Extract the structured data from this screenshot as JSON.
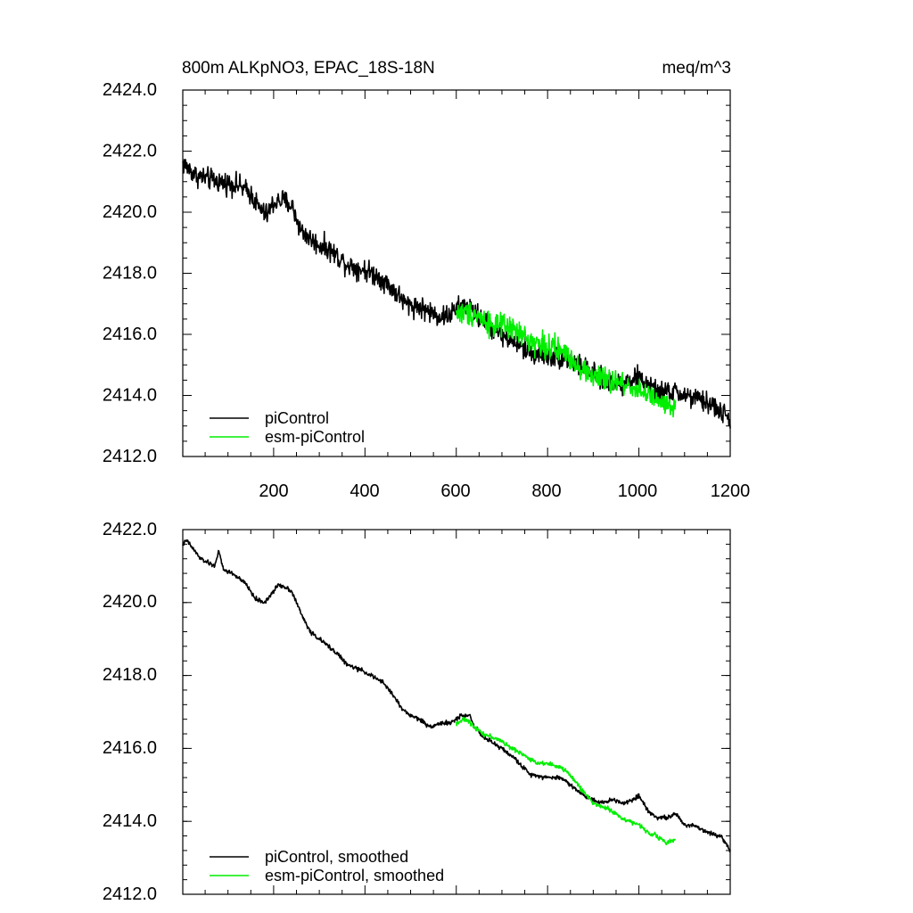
{
  "chart_data": [
    {
      "type": "line",
      "title_left": "800m ALKpNO3, EPAC_18S-18N",
      "title_right": "meq/m^3",
      "xlim": [
        1,
        1200
      ],
      "ylim": [
        2412.0,
        2424.0
      ],
      "x_ticks": [
        200,
        400,
        600,
        800,
        1000,
        1200
      ],
      "y_ticks": [
        2412.0,
        2414.0,
        2416.0,
        2418.0,
        2420.0,
        2422.0,
        2424.0
      ],
      "y_tick_labels": [
        "2412.0",
        "2414.0",
        "2416.0",
        "2418.0",
        "2420.0",
        "2422.0",
        "2424.0"
      ],
      "x_tick_labels": [
        "200",
        "400",
        "600",
        "800",
        "1000",
        "1200"
      ],
      "legend": "bottom-left",
      "series": [
        {
          "name": "piControl",
          "color": "#000000",
          "x_range": [
            1,
            1200
          ],
          "anchors": [
            [
              1,
              2421.6
            ],
            [
              30,
              2421.2
            ],
            [
              80,
              2421.0
            ],
            [
              120,
              2420.9
            ],
            [
              150,
              2420.6
            ],
            [
              170,
              2420.1
            ],
            [
              185,
              2419.9
            ],
            [
              200,
              2420.3
            ],
            [
              220,
              2420.4
            ],
            [
              240,
              2420.2
            ],
            [
              260,
              2419.4
            ],
            [
              290,
              2419.0
            ],
            [
              320,
              2418.8
            ],
            [
              360,
              2418.3
            ],
            [
              400,
              2418.1
            ],
            [
              430,
              2417.9
            ],
            [
              460,
              2417.5
            ],
            [
              490,
              2417.0
            ],
            [
              520,
              2416.9
            ],
            [
              560,
              2416.6
            ],
            [
              580,
              2416.6
            ],
            [
              600,
              2416.8
            ],
            [
              620,
              2417.0
            ],
            [
              640,
              2416.7
            ],
            [
              680,
              2416.2
            ],
            [
              720,
              2415.8
            ],
            [
              760,
              2415.4
            ],
            [
              800,
              2415.3
            ],
            [
              840,
              2415.2
            ],
            [
              880,
              2414.9
            ],
            [
              920,
              2414.5
            ],
            [
              960,
              2414.4
            ],
            [
              1000,
              2414.6
            ],
            [
              1040,
              2414.1
            ],
            [
              1080,
              2414.1
            ],
            [
              1120,
              2413.9
            ],
            [
              1160,
              2413.7
            ],
            [
              1200,
              2413.2
            ]
          ],
          "noise": 0.35
        },
        {
          "name": "esm-piControl",
          "color": "#00ee00",
          "x_range": [
            600,
            1080
          ],
          "anchors": [
            [
              600,
              2416.7
            ],
            [
              640,
              2416.7
            ],
            [
              680,
              2416.3
            ],
            [
              720,
              2416.2
            ],
            [
              760,
              2415.8
            ],
            [
              800,
              2415.6
            ],
            [
              840,
              2415.4
            ],
            [
              860,
              2415.1
            ],
            [
              880,
              2414.8
            ],
            [
              920,
              2414.5
            ],
            [
              960,
              2414.4
            ],
            [
              1000,
              2414.2
            ],
            [
              1040,
              2413.8
            ],
            [
              1080,
              2413.5
            ]
          ],
          "noise": 0.4
        }
      ]
    },
    {
      "type": "line",
      "xlim": [
        1,
        1200
      ],
      "ylim": [
        2412.0,
        2422.0
      ],
      "x_ticks": [
        200,
        400,
        600,
        800,
        1000,
        1200
      ],
      "y_ticks": [
        2412.0,
        2414.0,
        2416.0,
        2418.0,
        2420.0,
        2422.0
      ],
      "y_tick_labels": [
        "2412.0",
        "2414.0",
        "2416.0",
        "2418.0",
        "2420.0",
        "2422.0"
      ],
      "legend": "bottom-left",
      "series": [
        {
          "name": "piControl, smoothed",
          "color": "#000000",
          "x_range": [
            1,
            1200
          ],
          "anchors": [
            [
              1,
              2421.6
            ],
            [
              10,
              2421.7
            ],
            [
              40,
              2421.2
            ],
            [
              70,
              2421.0
            ],
            [
              80,
              2421.4
            ],
            [
              90,
              2420.9
            ],
            [
              110,
              2420.8
            ],
            [
              140,
              2420.5
            ],
            [
              160,
              2420.1
            ],
            [
              180,
              2420.0
            ],
            [
              200,
              2420.3
            ],
            [
              210,
              2420.5
            ],
            [
              230,
              2420.4
            ],
            [
              240,
              2420.3
            ],
            [
              260,
              2419.7
            ],
            [
              280,
              2419.2
            ],
            [
              300,
              2419.0
            ],
            [
              340,
              2418.6
            ],
            [
              360,
              2418.3
            ],
            [
              400,
              2418.1
            ],
            [
              440,
              2417.8
            ],
            [
              460,
              2417.5
            ],
            [
              480,
              2417.1
            ],
            [
              500,
              2416.9
            ],
            [
              520,
              2416.8
            ],
            [
              540,
              2416.6
            ],
            [
              570,
              2416.7
            ],
            [
              590,
              2416.7
            ],
            [
              610,
              2416.9
            ],
            [
              630,
              2416.9
            ],
            [
              640,
              2416.6
            ],
            [
              660,
              2416.3
            ],
            [
              700,
              2416.0
            ],
            [
              730,
              2415.7
            ],
            [
              760,
              2415.3
            ],
            [
              800,
              2415.2
            ],
            [
              830,
              2415.2
            ],
            [
              860,
              2414.9
            ],
            [
              880,
              2414.7
            ],
            [
              920,
              2414.5
            ],
            [
              940,
              2414.6
            ],
            [
              970,
              2414.5
            ],
            [
              1000,
              2414.7
            ],
            [
              1020,
              2414.3
            ],
            [
              1040,
              2414.1
            ],
            [
              1060,
              2414.1
            ],
            [
              1080,
              2414.2
            ],
            [
              1100,
              2413.9
            ],
            [
              1120,
              2413.9
            ],
            [
              1150,
              2413.7
            ],
            [
              1180,
              2413.6
            ],
            [
              1200,
              2413.2
            ]
          ],
          "noise": 0.06
        },
        {
          "name": "esm-piControl, smoothed",
          "color": "#00ee00",
          "x_range": [
            600,
            1080
          ],
          "anchors": [
            [
              600,
              2416.7
            ],
            [
              620,
              2416.8
            ],
            [
              640,
              2416.6
            ],
            [
              660,
              2416.4
            ],
            [
              680,
              2416.3
            ],
            [
              700,
              2416.2
            ],
            [
              720,
              2416.0
            ],
            [
              740,
              2415.9
            ],
            [
              760,
              2415.7
            ],
            [
              780,
              2415.6
            ],
            [
              800,
              2415.6
            ],
            [
              820,
              2415.5
            ],
            [
              840,
              2415.4
            ],
            [
              860,
              2415.1
            ],
            [
              880,
              2414.8
            ],
            [
              900,
              2414.5
            ],
            [
              920,
              2414.4
            ],
            [
              940,
              2414.3
            ],
            [
              960,
              2414.1
            ],
            [
              980,
              2414.0
            ],
            [
              1000,
              2413.9
            ],
            [
              1020,
              2413.7
            ],
            [
              1040,
              2413.6
            ],
            [
              1060,
              2413.4
            ],
            [
              1080,
              2413.5
            ]
          ],
          "noise": 0.06
        }
      ]
    }
  ]
}
